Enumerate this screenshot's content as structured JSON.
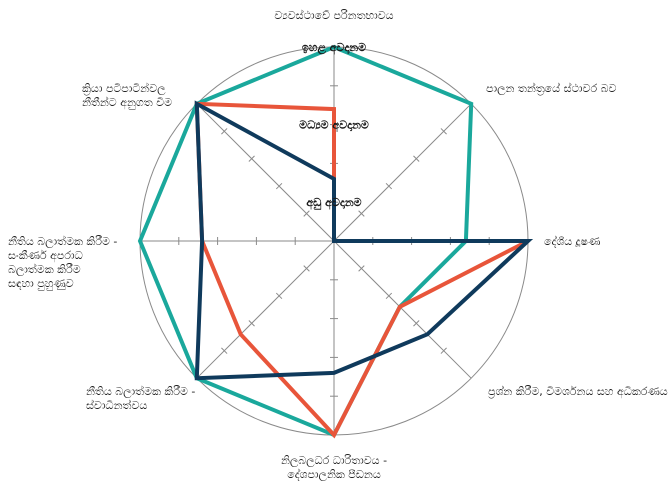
{
  "chart_data": {
    "type": "radar",
    "title": "",
    "axes": [
      {
        "id": "top",
        "lines": [
          "ව්‍යවස්ථාවේ පරිනතභාවය"
        ]
      },
      {
        "id": "upper-right",
        "lines": [
          "පාලන තන්ත්‍රයේ ස්ථාවර බව"
        ]
      },
      {
        "id": "right",
        "lines": [
          "දේශීය දූෂණ"
        ]
      },
      {
        "id": "lower-right",
        "lines": [
          "ප්‍රශ්න කිරීම, විමර්ශනය සහ අධිකරණය"
        ]
      },
      {
        "id": "bottom",
        "lines": [
          "නිලබලධර ධාරිතාවය -",
          "දේශපාලනික පීඩනය"
        ]
      },
      {
        "id": "lower-left",
        "lines": [
          "නීතිය බලාත්මක කිරීම -",
          "ස්වාධීනත්වය"
        ]
      },
      {
        "id": "left",
        "lines": [
          "නීතිය බලාත්මක කිරීම -",
          "සංකීර්ණ අපරාධ",
          "බලාත්මක කිරීම",
          "සඳහා පුහුණුව"
        ]
      },
      {
        "id": "upper-left",
        "lines": [
          "ක්‍රියා පටිපාටීන්වල",
          "නීතීන්ට අනුගත වීම"
        ]
      }
    ],
    "rings": [
      {
        "value": 5,
        "label": "ඉහළ අවදානම"
      },
      {
        "value": 3,
        "label": "මධ්‍යම අවදානම"
      },
      {
        "value": 1,
        "label": "අඩු අවදානම"
      }
    ],
    "scale_max": 5,
    "ticks_per_axis": 4,
    "series": [
      {
        "color": "#1aa89c",
        "values": [
          5,
          5,
          3.4,
          2.4,
          5,
          5,
          5,
          5
        ]
      },
      {
        "color": "#e8553a",
        "values": [
          3.4,
          0,
          5,
          2.4,
          5,
          3.4,
          3.4,
          5
        ]
      },
      {
        "color": "#0f3a5c",
        "values": [
          1.6,
          0,
          5,
          3.4,
          3.4,
          5,
          3.4,
          5
        ]
      }
    ]
  }
}
